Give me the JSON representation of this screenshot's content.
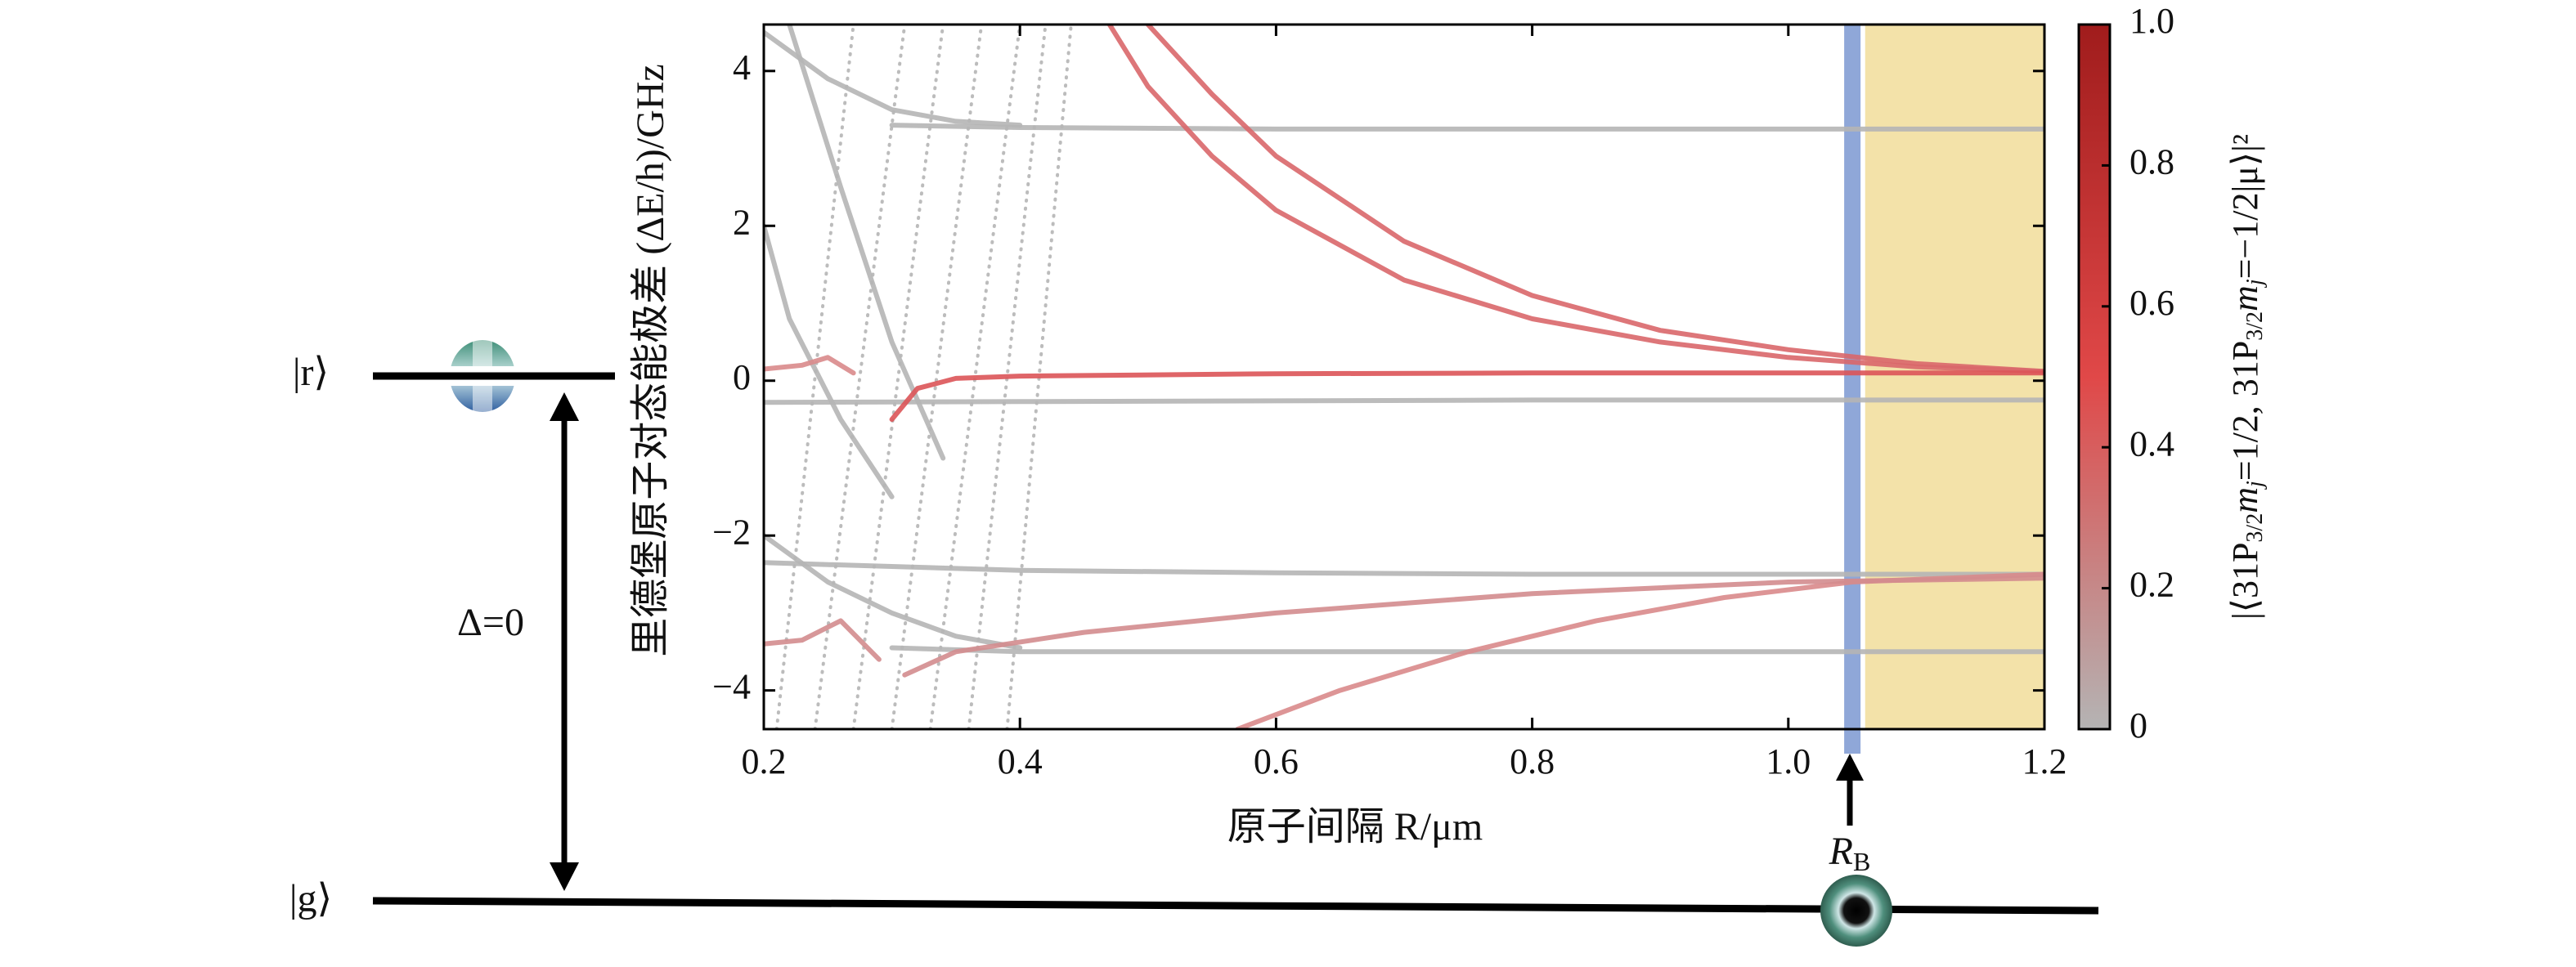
{
  "chart_data": {
    "type": "line",
    "xlabel": "原子间隔 R/μm",
    "ylabel": "里德堡原子对态能极差 (ΔE/h)/GHz",
    "xlim": [
      0.2,
      1.2
    ],
    "ylim": [
      -4.5,
      4.6
    ],
    "xticks": [
      0.2,
      0.4,
      0.6,
      0.8,
      {
        "value": 1.0,
        "label": "1.0"
      },
      1.2
    ],
    "yticks": [
      {
        "value": -4,
        "label": "−4"
      },
      {
        "value": -2,
        "label": "−2"
      },
      0,
      2,
      4
    ],
    "blockade_radius": 1.05,
    "blockade_color": "#8fa7d8",
    "shaded_xrange": [
      1.06,
      1.2
    ],
    "shaded_color": "#f3e2a9",
    "series": [
      {
        "color": "#b5b5b5",
        "style": "solid",
        "x": [
          0.3,
          0.4,
          0.6,
          0.8,
          1.0,
          1.2
        ],
        "values": [
          3.3,
          3.27,
          3.25,
          3.25,
          3.25,
          3.25
        ]
      },
      {
        "color": "#b5b5b5",
        "style": "solid",
        "x": [
          0.2,
          0.4,
          0.6,
          0.8,
          1.0,
          1.2
        ],
        "values": [
          -0.28,
          -0.27,
          -0.26,
          -0.25,
          -0.25,
          -0.25
        ]
      },
      {
        "color": "#b5b5b5",
        "style": "solid",
        "x": [
          0.2,
          0.4,
          0.6,
          0.8,
          1.0,
          1.2
        ],
        "values": [
          -2.35,
          -2.45,
          -2.48,
          -2.5,
          -2.5,
          -2.5
        ]
      },
      {
        "color": "#b5b5b5",
        "style": "solid",
        "x": [
          0.3,
          0.4,
          0.6,
          0.8,
          1.0,
          1.2
        ],
        "values": [
          -3.45,
          -3.5,
          -3.5,
          -3.5,
          -3.5,
          -3.5
        ]
      },
      {
        "color": "#b5b5b5",
        "style": "solid",
        "x": [
          0.2,
          0.25,
          0.3,
          0.35,
          0.4
        ],
        "values": [
          4.5,
          3.9,
          3.5,
          3.35,
          3.3
        ]
      },
      {
        "color": "#b5b5b5",
        "style": "solid",
        "x": [
          0.2,
          0.22,
          0.26,
          0.3
        ],
        "values": [
          2.0,
          0.8,
          -0.5,
          -1.5
        ]
      },
      {
        "color": "#b5b5b5",
        "style": "solid",
        "x": [
          0.2,
          0.25,
          0.3,
          0.35,
          0.4
        ],
        "values": [
          -2.0,
          -2.6,
          -3.0,
          -3.3,
          -3.45
        ]
      },
      {
        "color": "#b5b5b5",
        "style": "solid",
        "x": [
          0.22,
          0.26,
          0.3,
          0.34
        ],
        "values": [
          4.6,
          2.5,
          0.5,
          -1.0
        ]
      },
      {
        "color": "#b5b5b5",
        "style": "dotted",
        "x": [
          0.21,
          0.27
        ],
        "values": [
          -4.5,
          4.6
        ]
      },
      {
        "color": "#b5b5b5",
        "style": "dotted",
        "x": [
          0.24,
          0.31
        ],
        "values": [
          -4.5,
          4.6
        ]
      },
      {
        "color": "#b5b5b5",
        "style": "dotted",
        "x": [
          0.27,
          0.34
        ],
        "values": [
          -4.5,
          4.6
        ]
      },
      {
        "color": "#b5b5b5",
        "style": "dotted",
        "x": [
          0.3,
          0.37
        ],
        "values": [
          -4.5,
          4.6
        ]
      },
      {
        "color": "#b5b5b5",
        "style": "dotted",
        "x": [
          0.33,
          0.4
        ],
        "values": [
          -4.5,
          4.6
        ]
      },
      {
        "color": "#b5b5b5",
        "style": "dotted",
        "x": [
          0.36,
          0.42
        ],
        "values": [
          -4.5,
          4.6
        ]
      },
      {
        "color": "#b5b5b5",
        "style": "dotted",
        "x": [
          0.39,
          0.44
        ],
        "values": [
          -4.5,
          4.6
        ]
      },
      {
        "color": "#d9676a",
        "style": "solid",
        "x": [
          0.47,
          0.5,
          0.55,
          0.6,
          0.7,
          0.8,
          0.9,
          1.0,
          1.1,
          1.2
        ],
        "values": [
          4.6,
          3.8,
          2.9,
          2.2,
          1.3,
          0.8,
          0.5,
          0.3,
          0.18,
          0.12
        ]
      },
      {
        "color": "#d9676a",
        "style": "solid",
        "x": [
          0.5,
          0.55,
          0.6,
          0.7,
          0.8,
          0.9,
          1.0,
          1.1,
          1.2
        ],
        "values": [
          4.6,
          3.7,
          2.9,
          1.8,
          1.1,
          0.65,
          0.4,
          0.22,
          0.12
        ]
      },
      {
        "color": "#dc5458",
        "style": "solid",
        "x": [
          0.3,
          0.32,
          0.35,
          0.4,
          0.6,
          0.8,
          1.0,
          1.2
        ],
        "values": [
          -0.5,
          -0.1,
          0.03,
          0.06,
          0.09,
          0.1,
          0.1,
          0.1
        ]
      },
      {
        "color": "#d9898b",
        "style": "solid",
        "x": [
          0.2,
          0.23,
          0.25,
          0.27
        ],
        "values": [
          0.15,
          0.2,
          0.3,
          0.1
        ]
      },
      {
        "color": "#d9898b",
        "style": "solid",
        "x": [
          0.57,
          0.65,
          0.75,
          0.85,
          0.95,
          1.05,
          1.2
        ],
        "values": [
          -4.5,
          -4.0,
          -3.5,
          -3.1,
          -2.8,
          -2.6,
          -2.5
        ]
      },
      {
        "color": "#d38c8e",
        "style": "solid",
        "x": [
          0.31,
          0.35,
          0.45,
          0.6,
          0.8,
          1.0,
          1.2
        ],
        "values": [
          -3.8,
          -3.5,
          -3.25,
          -3.0,
          -2.75,
          -2.6,
          -2.55
        ]
      },
      {
        "color": "#d38c8e",
        "style": "solid",
        "x": [
          0.2,
          0.23,
          0.26,
          0.29
        ],
        "values": [
          -3.4,
          -3.35,
          -3.1,
          -3.6
        ]
      }
    ],
    "colorbar": {
      "lim": [
        0,
        1
      ],
      "ticks": [
        0,
        0.2,
        0.4,
        0.6,
        0.8,
        {
          "value": 1.0,
          "label": "1.0"
        }
      ],
      "colors": [
        "#b4b4b4",
        "#e04848",
        "#a01c1c"
      ],
      "label_parts": [
        {
          "text": "|⟨31P"
        },
        {
          "text": "3/2",
          "sub": true
        },
        {
          "text": "m",
          "italic": true
        },
        {
          "text": "j",
          "sub": true,
          "italic": true
        },
        {
          "text": "=1/2, 31P"
        },
        {
          "text": "3/2",
          "sub": true
        },
        {
          "text": "m",
          "italic": true
        },
        {
          "text": "j",
          "sub": true,
          "italic": true
        },
        {
          "text": "=−1/2|μ⟩|²"
        }
      ]
    }
  },
  "diagram": {
    "ground_label": "|g⟩",
    "rydberg_label": "|r⟩",
    "detuning_label": "Δ=0",
    "radius_label": "R",
    "radius_sub": "B"
  }
}
